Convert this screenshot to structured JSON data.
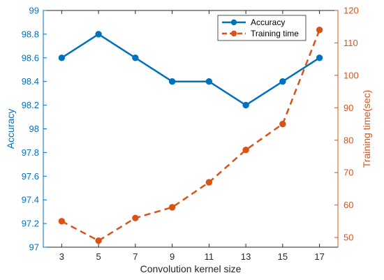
{
  "chart_data": {
    "type": "line",
    "x": [
      3,
      5,
      7,
      9,
      11,
      13,
      15,
      17
    ],
    "xlabel": "Convolution kernel size",
    "xlim": [
      2,
      18
    ],
    "xticks": [
      "3",
      "5",
      "7",
      "9",
      "11",
      "13",
      "15",
      "17"
    ],
    "left_axis": {
      "label": "Accuracy",
      "ylim": [
        97,
        99
      ],
      "ticks": [
        "97",
        "97.2",
        "97.4",
        "97.6",
        "97.8",
        "98",
        "98.2",
        "98.4",
        "98.6",
        "98.8",
        "99"
      ],
      "color": "#0072BD"
    },
    "right_axis": {
      "label": "Training time(sec)",
      "ylim": [
        47,
        120
      ],
      "ticks": [
        "50",
        "60",
        "70",
        "80",
        "90",
        "100",
        "110",
        "120"
      ],
      "color": "#D95319"
    },
    "series": [
      {
        "name": "Accuracy",
        "axis": "left",
        "style": "solid",
        "marker": "circle",
        "color": "#0072BD",
        "values": [
          98.6,
          98.8,
          98.6,
          98.4,
          98.4,
          98.2,
          98.4,
          98.6
        ]
      },
      {
        "name": "Training time",
        "axis": "right",
        "style": "dashed",
        "marker": "circle",
        "color": "#D95319",
        "values": [
          55,
          49,
          56,
          59.3,
          67,
          77,
          85,
          114
        ]
      }
    ],
    "legend": {
      "position": "top-right",
      "entries": [
        "Accuracy",
        "Training time"
      ]
    },
    "grid": false
  }
}
